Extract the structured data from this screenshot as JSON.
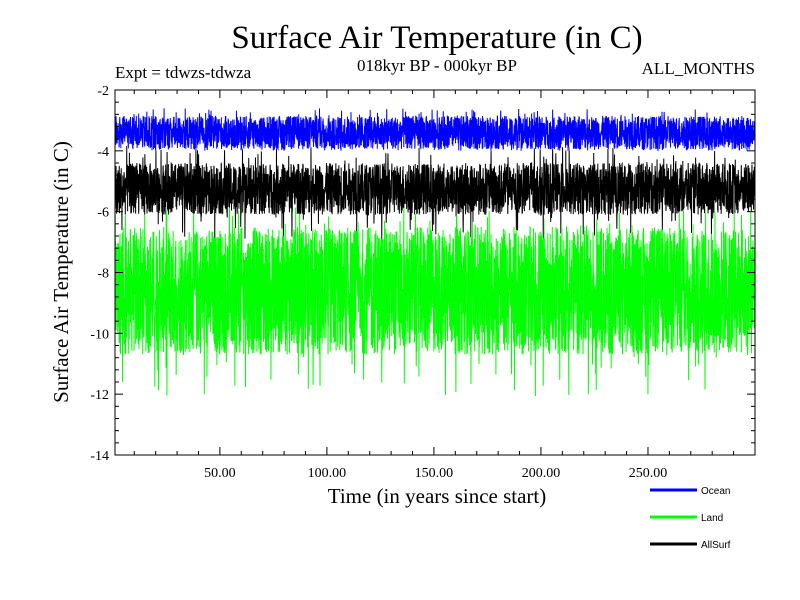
{
  "chart_data": {
    "type": "line",
    "title": "Surface Air Temperature (in C)",
    "subtitle_left": "Expt = tdwzs-tdwza",
    "subtitle_center": "018kyr BP - 000kyr BP",
    "subtitle_right": "ALL_MONTHS",
    "xlabel": "Time (in years since start)",
    "ylabel": "Surface Air Temperature (in C)",
    "xlim": [
      1,
      300
    ],
    "ylim": [
      -14,
      -2
    ],
    "x_ticks": [
      50,
      100,
      150,
      200,
      250
    ],
    "x_tick_labels": [
      "50.00",
      "100.00",
      "150.00",
      "200.00",
      "250.00"
    ],
    "y_ticks": [
      -14,
      -12,
      -10,
      -8,
      -6,
      -4,
      -2
    ],
    "y_tick_labels": [
      "-14",
      "-12",
      "-10",
      "-8",
      "-6",
      "-4",
      "-2"
    ],
    "legend_position": "bottom-right, below plot",
    "grid": false,
    "series": [
      {
        "name": "Ocean",
        "color": "#0000ff",
        "mean": -3.4,
        "band_low": -3.95,
        "band_high": -2.85,
        "spike_max": -2.6,
        "spike_min": -4.0
      },
      {
        "name": "Land",
        "color": "#00ff00",
        "mean": -8.6,
        "band_low": -10.7,
        "band_high": -6.5,
        "spike_max": -5.5,
        "spike_min": -12.1
      },
      {
        "name": "AllSurf",
        "color": "#000000",
        "mean": -5.3,
        "band_low": -6.1,
        "band_high": -4.4,
        "spike_max": -3.8,
        "spike_min": -6.9
      }
    ]
  }
}
